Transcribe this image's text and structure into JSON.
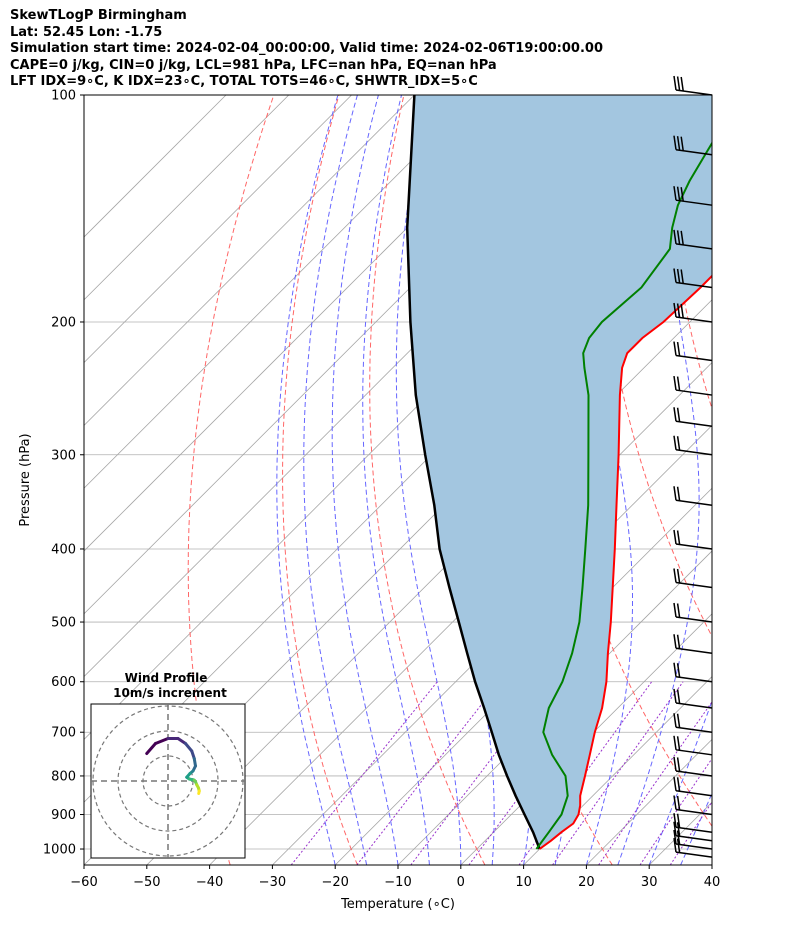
{
  "header": {
    "line1": "SkewTLogP Birmingham",
    "line2": "Lat: 52.45   Lon: -1.75",
    "line3": "Simulation start time: 2024-02-04_00:00:00, Valid time: 2024-02-06T19:00:00.00",
    "line4": "CAPE=0 j/kg, CIN=0 j/kg, LCL=981 hPa, LFC=nan hPa, EQ=nan hPa",
    "line5": "LFT IDX=9∘C, K IDX=23∘C, TOTAL TOTS=46∘C, SHWTR_IDX=5∘C"
  },
  "inset": {
    "title_line1": "Wind Profile",
    "title_line2": "10m/s increment"
  },
  "colors": {
    "temperature": "#ff0000",
    "dewpoint": "#008000",
    "parcel": "#000000",
    "cape_fill": "#a3c6e0",
    "dry_adiabats": "#ff6666",
    "moist_adiabats": "#6666ff",
    "mixing_ratio": "#9933cc",
    "isotherms": "#a6a6a6"
  },
  "chart_data": {
    "type": "line",
    "xlabel": "Temperature (∘C)",
    "ylabel": "Pressure (hPa)",
    "xlim": [
      -60,
      40
    ],
    "ylim": [
      1050,
      100
    ],
    "y_scale": "log",
    "grid": true,
    "x_ticks": [
      -60,
      -50,
      -40,
      -30,
      -20,
      -10,
      0,
      10,
      20,
      30,
      40
    ],
    "y_ticks": [
      1000,
      900,
      800,
      700,
      600,
      500,
      400,
      300,
      200,
      100
    ],
    "series": [
      {
        "name": "",
        "role": "temperature",
        "points": [
          [
            1000,
            10
          ],
          [
            975,
            10.5
          ],
          [
            950,
            10.8
          ],
          [
            925,
            11.3
          ],
          [
            900,
            10.7
          ],
          [
            875,
            9.5
          ],
          [
            850,
            8
          ],
          [
            800,
            5.6
          ],
          [
            750,
            3
          ],
          [
            700,
            0.2
          ],
          [
            650,
            -2.5
          ],
          [
            600,
            -6
          ],
          [
            550,
            -10.3
          ],
          [
            500,
            -14.8
          ],
          [
            450,
            -20
          ],
          [
            400,
            -25.8
          ],
          [
            350,
            -32.5
          ],
          [
            300,
            -40.2
          ],
          [
            250,
            -49.5
          ],
          [
            230,
            -53.5
          ],
          [
            220,
            -55
          ],
          [
            210,
            -55
          ],
          [
            200,
            -54.2
          ],
          [
            180,
            -53.8
          ],
          [
            160,
            -53.8
          ],
          [
            140,
            -53.8
          ],
          [
            120,
            -55.5
          ],
          [
            100,
            -57
          ]
        ]
      },
      {
        "name": "",
        "role": "dewpoint",
        "points": [
          [
            1000,
            9.5
          ],
          [
            950,
            8.8
          ],
          [
            900,
            8
          ],
          [
            850,
            6
          ],
          [
            800,
            2.5
          ],
          [
            750,
            -3
          ],
          [
            700,
            -8
          ],
          [
            650,
            -11
          ],
          [
            600,
            -13
          ],
          [
            550,
            -16
          ],
          [
            500,
            -19.8
          ],
          [
            450,
            -24.8
          ],
          [
            400,
            -30.5
          ],
          [
            350,
            -37
          ],
          [
            300,
            -45
          ],
          [
            250,
            -54.5
          ],
          [
            230,
            -59.5
          ],
          [
            220,
            -62
          ],
          [
            210,
            -63.5
          ],
          [
            200,
            -64
          ],
          [
            180,
            -63.2
          ],
          [
            160,
            -64.8
          ],
          [
            150,
            -67.8
          ],
          [
            140,
            -70.5
          ],
          [
            130,
            -72.5
          ],
          [
            120,
            -74.2
          ],
          [
            100,
            -78
          ]
        ]
      },
      {
        "name": "",
        "role": "parcel",
        "points": [
          [
            1000,
            10
          ],
          [
            950,
            6.3
          ],
          [
            900,
            2.1
          ],
          [
            850,
            -2.3
          ],
          [
            800,
            -6.8
          ],
          [
            750,
            -11.5
          ],
          [
            700,
            -16.2
          ],
          [
            650,
            -21.3
          ],
          [
            600,
            -26.9
          ],
          [
            550,
            -32.7
          ],
          [
            500,
            -39
          ],
          [
            450,
            -46
          ],
          [
            400,
            -53.7
          ],
          [
            350,
            -61.5
          ],
          [
            300,
            -71
          ],
          [
            250,
            -82
          ],
          [
            200,
            -94.5
          ],
          [
            150,
            -110
          ],
          [
            100,
            -130
          ]
        ]
      }
    ],
    "wind_barbs": [
      {
        "p": 100,
        "barbs": 3
      },
      {
        "p": 120,
        "barbs": 3
      },
      {
        "p": 140,
        "barbs": 3
      },
      {
        "p": 160,
        "barbs": 3
      },
      {
        "p": 180,
        "barbs": 3
      },
      {
        "p": 200,
        "barbs": 3
      },
      {
        "p": 225,
        "barbs": 2
      },
      {
        "p": 250,
        "barbs": 2
      },
      {
        "p": 275,
        "barbs": 2
      },
      {
        "p": 300,
        "barbs": 2
      },
      {
        "p": 350,
        "barbs": 2
      },
      {
        "p": 400,
        "barbs": 2
      },
      {
        "p": 450,
        "barbs": 2
      },
      {
        "p": 500,
        "barbs": 2
      },
      {
        "p": 550,
        "barbs": 2
      },
      {
        "p": 600,
        "barbs": 2
      },
      {
        "p": 650,
        "barbs": 2
      },
      {
        "p": 700,
        "barbs": 2
      },
      {
        "p": 750,
        "barbs": 2
      },
      {
        "p": 800,
        "barbs": 2
      },
      {
        "p": 850,
        "barbs": 2
      },
      {
        "p": 900,
        "barbs": 2
      },
      {
        "p": 950,
        "barbs": 2
      },
      {
        "p": 975,
        "barbs": 2
      },
      {
        "p": 1000,
        "barbs": 2
      },
      {
        "p": 1025,
        "barbs": 2
      }
    ],
    "wind_profile": {
      "increment_ms": 10,
      "rings": [
        10,
        20,
        30
      ],
      "points": [
        [
          -8.5,
          11
        ],
        [
          -5,
          15
        ],
        [
          0,
          17
        ],
        [
          4,
          17
        ],
        [
          7,
          15
        ],
        [
          9.5,
          12
        ],
        [
          10.5,
          9
        ],
        [
          11,
          6
        ],
        [
          10,
          4
        ],
        [
          8.8,
          3
        ],
        [
          7.5,
          1.5
        ],
        [
          8.5,
          0.8
        ],
        [
          9.8,
          0.5
        ],
        [
          10.5,
          0.3
        ],
        [
          11,
          -0.3
        ],
        [
          11.5,
          -1.5
        ],
        [
          12.2,
          -2.8
        ],
        [
          12.5,
          -4
        ],
        [
          12.3,
          -5
        ]
      ]
    }
  }
}
